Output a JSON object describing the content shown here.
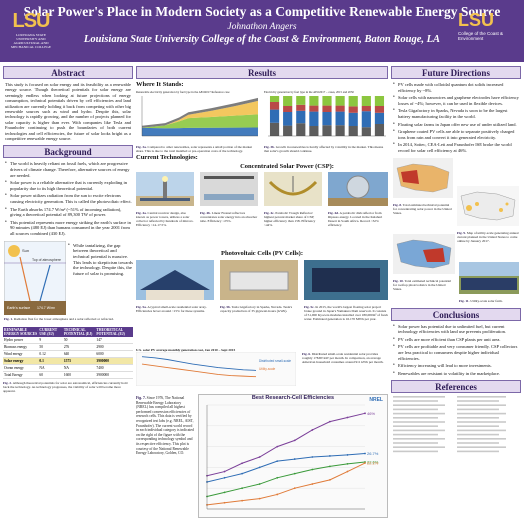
{
  "header": {
    "title": "Solar Power's Place in Modern Society as a Competitive Renewable Energy Source",
    "author": "Johnathon Angers",
    "institution": "Louisiana State University College of the Coast & Environment, Baton Rouge, LA",
    "logo_left": "LSU",
    "logo_left_sub": "LOUISIANA STATE UNIVERSITY AND AGRICULTURAL AND MECHANICAL COLLEGE",
    "logo_right": "LSU",
    "logo_right_sub": "College of the Coast & Environment"
  },
  "abstract": {
    "heading": "Abstract",
    "text": "This study is focused on solar energy and its feasibility as a renewable energy source. Though theoretical potentials for solar energy are seemingly endless when looking at future projections of energy consumption, technical potentials driven by cell efficiencies and land utilization are currently holding it back from competing with other big renewable sources such as wind and hydro. Despite this, solar technology is rapidly growing, and the number of projects planned for solar capacity is higher than ever. With companies like Tesla and Fraunhofer continuing to push the boundaries of both current technologies and cell efficiencies, the future of solar looks bright as a competitive renewable energy source."
  },
  "background": {
    "heading": "Background",
    "bullets": [
      "The world is heavily reliant on fossil fuels, which are progressive drivers of climate change. Therefore, alternative sources of energy are needed.",
      "Solar power is a reliable alternative that is currently exploding in popularity due to its high theoretical potential.",
      "Solar power utilizes radiation from the sun to excite electrons causing electricity generation. This is called the photovoltaic effect.",
      "The Earth absorbs 174.7 W/m² (~51% of incoming radiation), giving a theoretical potential of 89,300 TW of power.",
      "This potential represents more energy striking the earth's surface in 90 minutes (480 EJ) than humans consumed in the year 2001 from all sources combined (430 EJ)."
    ],
    "side_bullet": "While tantalizing, the gap between theoretical and technical potential is massive. This leads to skepticism towards the technology. Despite this, the future of solar is promising.",
    "fig1_caption_bold": "Fig. 1.",
    "fig1_caption": "Radiation flux for the lower atmosphere and a solar reflected or refracted.",
    "fig1_labels": {
      "sun": "Sun",
      "top": "Top of atmosphere",
      "surface": "Earth's surface",
      "absorbed": "174.7 W/m²"
    },
    "table": {
      "headers": [
        "RENEWABLE ENERGY SOURCES",
        "CURRENT USE (EJ)",
        "TECHNICAL POTENTIAL (EJ)",
        "THEORETICAL POTENTIAL (EJ)"
      ],
      "rows": [
        [
          "Hydro power",
          "9",
          "50",
          "147"
        ],
        [
          "Biomass energy",
          "50",
          "276",
          "2900"
        ],
        [
          "Wind energy",
          "0.12",
          "640",
          "6000"
        ],
        [
          "Solar energy",
          "0.1",
          "1575",
          "3900000"
        ],
        [
          "Ocean energy",
          "NA",
          "NA",
          "7400"
        ],
        [
          "Total Energy",
          "60",
          "1600",
          "3900000"
        ]
      ]
    },
    "fig2_caption_bold": "Fig. 2.",
    "fig2_caption": "Although theoretical potentials for solar are astronomical, efficiencies currently hold back the technology. As technology progresses, the viability of solar will become more apparent."
  },
  "results": {
    "heading": "Results",
    "where_heading": "Where It Stands:",
    "fig3a_title": "Renewable electricity generation by fuel type in the AEO2017 Reference case",
    "fig3b_title": "Electricity generation by fuel type in the AEO2017 – cases, 2015 and 2050",
    "fig3a_caption": "Compared to other renewables, solar represents a small portion of the market share. This is due to the total installed or pre-operation costs of the technology.",
    "fig3b_caption": "Growth in renewables is hardly affected by volatility in the market. This means that solar's growth should continue.",
    "fig3a_chart": {
      "type": "area",
      "x": [
        2000,
        2010,
        2016,
        2020,
        2030,
        2040,
        2050
      ],
      "series": [
        {
          "name": "Hydro",
          "values": [
            270,
            260,
            265,
            270,
            275,
            280,
            285
          ],
          "color": "#2f6db5"
        },
        {
          "name": "Wind",
          "values": [
            5,
            95,
            225,
            330,
            360,
            400,
            440
          ],
          "color": "#8cc63f"
        },
        {
          "name": "Solar",
          "values": [
            0,
            2,
            50,
            110,
            210,
            320,
            450
          ],
          "color": "#f2c14e"
        },
        {
          "name": "Other",
          "values": [
            70,
            75,
            80,
            85,
            90,
            95,
            100
          ],
          "color": "#6f6f6f"
        }
      ],
      "xlim": [
        2000,
        2050
      ]
    },
    "fig3b_chart": {
      "type": "bar",
      "categories": [
        "2015",
        "Ref",
        "No CPP",
        "High Oil",
        "Low Oil",
        "High Econ",
        "Low Econ",
        "High Res",
        "Low Res"
      ],
      "series": [
        {
          "name": "Coal",
          "values": [
            33,
            26,
            32,
            25,
            27,
            27,
            25,
            22,
            30
          ],
          "color": "#5d5d5d"
        },
        {
          "name": "Natural gas",
          "values": [
            33,
            34,
            31,
            36,
            33,
            34,
            33,
            40,
            28
          ],
          "color": "#2f6db5"
        },
        {
          "name": "Nuclear",
          "values": [
            19,
            15,
            15,
            15,
            16,
            15,
            16,
            13,
            17
          ],
          "color": "#b94a48"
        },
        {
          "name": "Renewables",
          "values": [
            15,
            25,
            22,
            24,
            24,
            24,
            26,
            25,
            25
          ],
          "color": "#8cc63f"
        }
      ],
      "ylim": [
        0,
        100
      ]
    },
    "current_tech_heading": "Current Technologies:",
    "csp_heading": "Concentrated Solar Power (CSP):",
    "csp_captions": [
      "Central receiver design, also known as power towers, utilizes a solar collector reflected by hundreds of mirrors. Efficiency ~14-17.5%.",
      "Linear Fresnel reflectors concentrates solar energy into an absorber tube. Efficiency ~25%.",
      "Parabolic Trough Reflector: highest percent market share of CSP; higher efficiency than 158. Efficiency ~44%.",
      "A parabolic dish reflector from Ripasso energy. Located in the Kalahari Desert in South Africa. Record ~32% efficiency."
    ],
    "pv_heading": "Photovoltaic Cells (PV Cells):",
    "pv_captions": [
      "A typical small-scale residential solar array. Efficiencies hover around ~15% for these systems.",
      "Tesla Gigafactory in Sparks, Nevada. Tesla's capacity production of 35 gigawatt-hours (GWh).",
      "In 2015, the world's largest floating solar project broke ground in Japan's Yamakura Dam reservoir. It consists of 51,000 Kyocera modules installed over 180,000m² of fresh water. Estimated generation is 16.170 MWh per year.",
      "Distributed small-scale residential solar provides roughly 17MW/kW per month. In comparison, an average American household consumes around 911 kWh per month."
    ],
    "price_chart": {
      "type": "line",
      "title": "U.S. solar PV average monthly generation cost, Jan 2010 – Sept 2015",
      "series": [
        {
          "name": "Distributed small-scale",
          "values": [
            0.46,
            0.44,
            0.41,
            0.37,
            0.33,
            0.3,
            0.27,
            0.25,
            0.23,
            0.22
          ],
          "color": "#2f6db5"
        },
        {
          "name": "Utility-scale",
          "values": [
            0.33,
            0.3,
            0.27,
            0.24,
            0.21,
            0.18,
            0.15,
            0.13,
            0.12,
            0.11
          ],
          "color": "#e07b39"
        }
      ]
    },
    "fig7_caption": "Since 1976, The National Renewable Energy Laboratory (NREL) has compiled all highest performed conversion efficiencies of research cells. This data is verified by recognized test labs (e.g. NREL, AIST, Fraunhofer). The current world record in each individual category is indicated on the right of the figure with the corresponding technology symbol and its respective efficiency. This plot is courtesy of the National Renewable Energy Laboratory, Golden, CO.",
    "fig7_title": "Best Research-Cell Efficiencies",
    "fig7_chart": {
      "type": "line",
      "series": [
        {
          "name": "Multijunction",
          "values": [
            16,
            18,
            22,
            25,
            30,
            33,
            38,
            42,
            44,
            46
          ],
          "color": "#7b3f99"
        },
        {
          "name": "Crystalline Si",
          "values": [
            13,
            15,
            17,
            20,
            23,
            24,
            25,
            25.5,
            26,
            26.7
          ],
          "color": "#2f6db5"
        },
        {
          "name": "Thin film",
          "values": [
            6,
            8,
            10,
            12,
            15,
            17,
            19,
            20.5,
            21.7,
            22.6
          ],
          "color": "#3a9a3a"
        },
        {
          "name": "Emerging PV",
          "values": [
            2,
            3,
            4,
            5,
            7,
            10,
            12,
            14,
            18,
            22.1
          ],
          "color": "#e07b39"
        }
      ],
      "ylim": [
        0,
        50
      ]
    },
    "nrel_label": "NREL"
  },
  "future": {
    "heading": "Future Directions",
    "bullets": [
      "PV cells made with colloidal quantum dot solids increased efficiency by ~8%.",
      "Solar cells with nanowires and graphene electrodes have efficiency losses of ~4%; however, it can be used in flexible devices.",
      "Tesla Gigafactory in Sparks, Nevada is soon to be the largest battery manufacturing facility in the world.",
      "Floating solar farms in Japan offer new use of under utilized land.",
      "Graphene coated PV cells are able to separate positively charged ions from rain and convert it into generated electricity.",
      "In 2014, Soitec, CEA-Leti and Fraunhofer ISE broke the world record for solar cell efficiency at 46%."
    ],
    "fig8_caption": "Total estimated technical potential for concentrating solar power in the United States.",
    "fig9_caption": "Map of utility-scale generating annual current planned in the United States to come online by January 2017.",
    "fig10_caption": "Total estimated technical potential for rooftop photovoltaics in the United States.",
    "fig11_caption": "Utility-scale solar farm."
  },
  "conclusions": {
    "heading": "Conclusions",
    "bullets": [
      "Solar power has potential due to unlimited fuel, but current technology efficiencies with land use prevents proliferation.",
      "PV cells are more efficient than CSP plants per unit area.",
      "PV cells are profitable and very consumer friendly. CSP collectors are less practical to consumers despite higher individual efficiencies.",
      "Efficiency increasing will lead to more investments.",
      "Renewables are resistant to volatility in the marketplace."
    ]
  },
  "references": {
    "heading": "References"
  },
  "colors": {
    "header": "#5a3b8c",
    "section_bg": "#e3d9ef",
    "section_border": "#7c68a8",
    "accent": "#f2c14e"
  }
}
